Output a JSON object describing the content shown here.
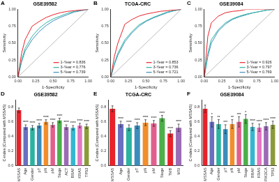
{
  "chart_data": [
    {
      "type": "line",
      "annotation": "A",
      "title": "GSE39582",
      "x_label": "1-Specificity",
      "y_label": "Sensitivity",
      "x": [
        0,
        0.05,
        0.1,
        0.2,
        0.3,
        0.4,
        0.5,
        0.6,
        0.7,
        0.8,
        0.9,
        1
      ],
      "series": [
        {
          "name": "1-Year = 0.836",
          "color": "#e8222a",
          "values": [
            0,
            0.35,
            0.55,
            0.75,
            0.82,
            0.88,
            0.92,
            0.95,
            0.97,
            0.98,
            0.99,
            1
          ]
        },
        {
          "name": "3-Year = 0.776",
          "color": "#2bb3a1",
          "values": [
            0,
            0.25,
            0.42,
            0.6,
            0.72,
            0.8,
            0.86,
            0.9,
            0.94,
            0.97,
            0.99,
            1
          ]
        },
        {
          "name": "5-Year = 0.739",
          "color": "#3c8dbc",
          "values": [
            0,
            0.22,
            0.38,
            0.55,
            0.67,
            0.76,
            0.83,
            0.88,
            0.92,
            0.96,
            0.98,
            1
          ]
        }
      ],
      "xlim": [
        0,
        1
      ],
      "ylim": [
        0,
        1
      ],
      "xticks": [
        {
          "value": 0,
          "label": "0.00"
        },
        {
          "value": 0.25,
          "label": "0.25"
        },
        {
          "value": 0.5,
          "label": "0.50"
        },
        {
          "value": 0.75,
          "label": "0.75"
        },
        {
          "value": 1,
          "label": "1.00"
        }
      ],
      "yticks": [
        {
          "value": 0,
          "label": "0.00"
        },
        {
          "value": 0.25,
          "label": "0.25"
        },
        {
          "value": 0.5,
          "label": "0.50"
        },
        {
          "value": 0.75,
          "label": "0.75"
        },
        {
          "value": 1,
          "label": "1.00"
        }
      ],
      "grid": false,
      "legend": "lower right"
    },
    {
      "type": "line",
      "annotation": "B",
      "title": "TCGA-CRC",
      "x_label": "1-Specificity",
      "y_label": "Sensitivity",
      "x": [
        0,
        0.05,
        0.1,
        0.2,
        0.3,
        0.4,
        0.5,
        0.6,
        0.7,
        0.8,
        0.9,
        1
      ],
      "series": [
        {
          "name": "1-Year = 0.853",
          "color": "#e8222a",
          "values": [
            0,
            0.3,
            0.5,
            0.78,
            0.85,
            0.9,
            0.93,
            0.95,
            0.97,
            0.98,
            0.99,
            1
          ]
        },
        {
          "name": "3-Year = 0.736",
          "color": "#2bb3a1",
          "values": [
            0,
            0.2,
            0.35,
            0.55,
            0.67,
            0.77,
            0.83,
            0.88,
            0.92,
            0.96,
            0.98,
            1
          ]
        },
        {
          "name": "5-Year = 0.721",
          "color": "#3c8dbc",
          "values": [
            0,
            0.18,
            0.32,
            0.52,
            0.65,
            0.75,
            0.82,
            0.87,
            0.91,
            0.95,
            0.98,
            1
          ]
        }
      ],
      "xlim": [
        0,
        1
      ],
      "ylim": [
        0,
        1
      ],
      "xticks": [
        {
          "value": 0,
          "label": "0.00"
        },
        {
          "value": 0.25,
          "label": "0.25"
        },
        {
          "value": 0.5,
          "label": "0.50"
        },
        {
          "value": 0.75,
          "label": "0.75"
        },
        {
          "value": 1,
          "label": "1.00"
        }
      ],
      "yticks": [
        {
          "value": 0,
          "label": "0.00"
        },
        {
          "value": 0.25,
          "label": "0.25"
        },
        {
          "value": 0.5,
          "label": "0.50"
        },
        {
          "value": 0.75,
          "label": "0.75"
        },
        {
          "value": 1,
          "label": "1.00"
        }
      ],
      "grid": false,
      "legend": "lower right"
    },
    {
      "type": "line",
      "annotation": "C",
      "title": "GSE39084",
      "x_label": "1-Specificity",
      "y_label": "Sensitivity",
      "x": [
        0,
        0.05,
        0.1,
        0.2,
        0.3,
        0.4,
        0.5,
        0.6,
        0.7,
        0.8,
        0.9,
        1
      ],
      "series": [
        {
          "name": "1-Year = 0.926",
          "color": "#e8222a",
          "values": [
            0,
            0.6,
            0.8,
            0.9,
            0.95,
            0.97,
            0.98,
            1,
            1,
            1,
            1,
            1
          ]
        },
        {
          "name": "3-Year = 0.797",
          "color": "#2bb3a1",
          "values": [
            0,
            0.35,
            0.55,
            0.7,
            0.8,
            0.86,
            0.9,
            0.93,
            0.95,
            0.97,
            0.99,
            1
          ]
        },
        {
          "name": "5-Year = 0.769",
          "color": "#3c8dbc",
          "values": [
            0,
            0.3,
            0.5,
            0.68,
            0.78,
            0.85,
            0.89,
            0.92,
            0.95,
            0.97,
            0.99,
            1
          ]
        }
      ],
      "xlim": [
        0,
        1
      ],
      "ylim": [
        0,
        1
      ],
      "xticks": [
        {
          "value": 0,
          "label": "0.00"
        },
        {
          "value": 0.25,
          "label": "0.25"
        },
        {
          "value": 0.5,
          "label": "0.50"
        },
        {
          "value": 0.75,
          "label": "0.75"
        },
        {
          "value": 1,
          "label": "1.00"
        }
      ],
      "yticks": [
        {
          "value": 0,
          "label": "0.00"
        },
        {
          "value": 0.25,
          "label": "0.25"
        },
        {
          "value": 0.5,
          "label": "0.50"
        },
        {
          "value": 0.75,
          "label": "0.75"
        },
        {
          "value": 1,
          "label": "1.00"
        }
      ],
      "grid": false,
      "legend": "lower right"
    },
    {
      "type": "bar",
      "annotation": "D",
      "title": "GSE39582",
      "y_label": "C-index (Compared with MSSAS)",
      "categories": [
        "MSSAS",
        "Age",
        "Gender",
        "pT",
        "pN",
        "pM",
        "Stage",
        "ACT",
        "BRAF",
        "KRAS",
        "TP53"
      ],
      "values": [
        0.76,
        0.53,
        0.52,
        0.55,
        0.6,
        0.56,
        0.62,
        0.53,
        0.52,
        0.55,
        0.54
      ],
      "errors": [
        0.03,
        0.03,
        0.03,
        0.03,
        0.03,
        0.03,
        0.03,
        0.03,
        0.03,
        0.03,
        0.03
      ],
      "significance": [
        null,
        "****",
        "****",
        "****",
        "****",
        "****",
        "****",
        "****",
        "****",
        "****",
        "****"
      ],
      "colors": [
        "#e8222a",
        "#6a6fc0",
        "#2bb3a1",
        "#3c8dbc",
        "#f28e2b",
        "#e15f8c",
        "#4daf4a",
        "#9b6bb5",
        "#36b6d0",
        "#e377c2",
        "#8c9b3a"
      ],
      "ylim": [
        0,
        0.9
      ],
      "yticks": [
        {
          "value": 0,
          "label": "0.0"
        },
        0.2,
        0.4,
        0.6,
        0.8
      ],
      "grid": false
    },
    {
      "type": "bar",
      "annotation": "E",
      "title": "TCGA-CRC",
      "y_label": "C-index (Compared with MSSAS)",
      "categories": [
        "MSSAS",
        "Age",
        "Gender",
        "pT",
        "pN",
        "pM",
        "Stage",
        "TMB",
        "MSI"
      ],
      "values": [
        0.78,
        0.57,
        0.52,
        0.55,
        0.59,
        0.58,
        0.65,
        0.44,
        0.52
      ],
      "errors": [
        0.04,
        0.04,
        0.04,
        0.04,
        0.04,
        0.04,
        0.04,
        0.04,
        0.05
      ],
      "significance": [
        null,
        "****",
        "****",
        "****",
        "****",
        "****",
        "****",
        "****",
        "****"
      ],
      "colors": [
        "#e8222a",
        "#6a6fc0",
        "#2bb3a1",
        "#3c8dbc",
        "#f28e2b",
        "#e15f8c",
        "#4daf4a",
        "#e8222a",
        "#9b6bb5"
      ],
      "ylim": [
        0,
        0.9
      ],
      "yticks": [
        {
          "value": 0,
          "label": "0.0"
        },
        0.2,
        0.4,
        0.6,
        0.8
      ],
      "grid": false
    },
    {
      "type": "bar",
      "annotation": "F",
      "title": "GSE39084",
      "y_label": "C-index (Compared with MSSAS)",
      "categories": [
        "MSSAS",
        "Age",
        "Gender",
        "pT",
        "pN",
        "pM",
        "Stage",
        "BRAF",
        "KRAS",
        "PIK3CA",
        "TP53"
      ],
      "values": [
        0.78,
        0.6,
        0.57,
        0.5,
        0.57,
        0.6,
        0.64,
        0.53,
        0.52,
        0.54,
        0.56
      ],
      "errors": [
        0.05,
        0.07,
        0.06,
        0.06,
        0.06,
        0.07,
        0.06,
        0.05,
        0.05,
        0.05,
        0.05
      ],
      "significance": [
        null,
        "*",
        "**",
        "***",
        "**",
        "***",
        "*",
        "****",
        "****",
        "****",
        "****"
      ],
      "colors": [
        "#e8222a",
        "#6a6fc0",
        "#2bb3a1",
        "#3c8dbc",
        "#f28e2b",
        "#e15f8c",
        "#4daf4a",
        "#36b6d0",
        "#e377c2",
        "#9b6bb5",
        "#8c9b3a"
      ],
      "ylim": [
        0,
        0.9
      ],
      "yticks": [
        {
          "value": 0,
          "label": "0.0"
        },
        0.2,
        0.4,
        0.6,
        0.8
      ],
      "grid": false
    }
  ]
}
